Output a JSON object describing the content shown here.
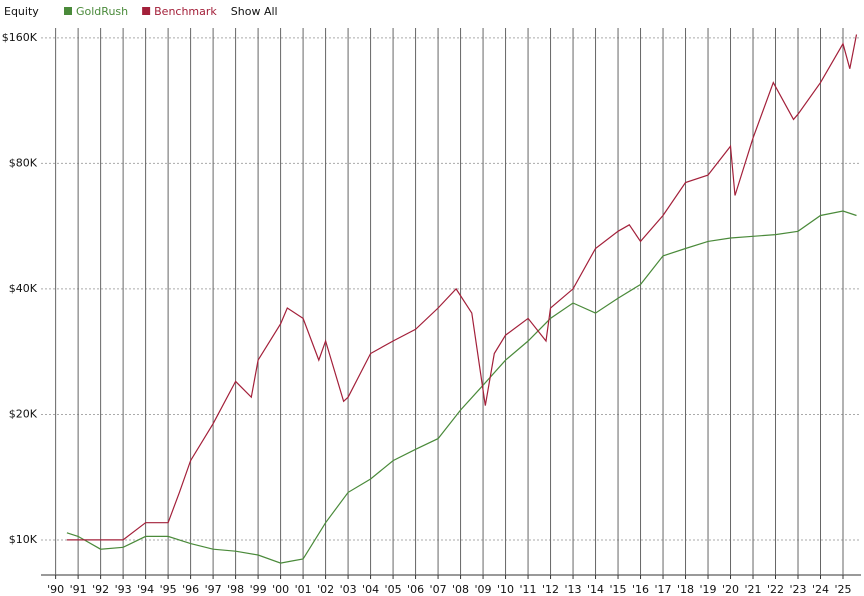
{
  "chart_data": {
    "type": "line",
    "title": "Equity",
    "legend_action": "Show All",
    "log_scale": true,
    "grid": true,
    "xlim": [
      1989.35,
      2025.8
    ],
    "xticks": [
      {
        "value": 1990,
        "label": "'90"
      },
      {
        "value": 1991,
        "label": "'91"
      },
      {
        "value": 1992,
        "label": "'92"
      },
      {
        "value": 1993,
        "label": "'93"
      },
      {
        "value": 1994,
        "label": "'94"
      },
      {
        "value": 1995,
        "label": "'95"
      },
      {
        "value": 1996,
        "label": "'96"
      },
      {
        "value": 1997,
        "label": "'97"
      },
      {
        "value": 1998,
        "label": "'98"
      },
      {
        "value": 1999,
        "label": "'99"
      },
      {
        "value": 2000,
        "label": "'00"
      },
      {
        "value": 2001,
        "label": "'01"
      },
      {
        "value": 2002,
        "label": "'02"
      },
      {
        "value": 2003,
        "label": "'03"
      },
      {
        "value": 2004,
        "label": "'04"
      },
      {
        "value": 2005,
        "label": "'05"
      },
      {
        "value": 2006,
        "label": "'06"
      },
      {
        "value": 2007,
        "label": "'07"
      },
      {
        "value": 2008,
        "label": "'08"
      },
      {
        "value": 2009,
        "label": "'09"
      },
      {
        "value": 2010,
        "label": "'10"
      },
      {
        "value": 2011,
        "label": "'11"
      },
      {
        "value": 2012,
        "label": "'12"
      },
      {
        "value": 2013,
        "label": "'13"
      },
      {
        "value": 2014,
        "label": "'14"
      },
      {
        "value": 2015,
        "label": "'15"
      },
      {
        "value": 2016,
        "label": "'16"
      },
      {
        "value": 2017,
        "label": "'17"
      },
      {
        "value": 2018,
        "label": "'18"
      },
      {
        "value": 2019,
        "label": "'19"
      },
      {
        "value": 2020,
        "label": "'20"
      },
      {
        "value": 2021,
        "label": "'21"
      },
      {
        "value": 2022,
        "label": "'22"
      },
      {
        "value": 2023,
        "label": "'23"
      },
      {
        "value": 2024,
        "label": "'24"
      },
      {
        "value": 2025,
        "label": "'25"
      }
    ],
    "ylim": [
      8240,
      169000
    ],
    "yticks": [
      {
        "value": 10000,
        "label": "$10K"
      },
      {
        "value": 20000,
        "label": "$20K"
      },
      {
        "value": 40000,
        "label": "$40K"
      },
      {
        "value": 80000,
        "label": "$80K"
      },
      {
        "value": 160000,
        "label": "$160K"
      }
    ],
    "series": [
      {
        "name": "GoldRush",
        "color": "#4a8a3a",
        "x": [
          1990.5,
          1991,
          1992,
          1993,
          1994,
          1995,
          1996,
          1997,
          1998,
          1999,
          2000,
          2000.5,
          2001,
          2002,
          2003,
          2004,
          2005,
          2006,
          2007,
          2008,
          2009,
          2010,
          2011,
          2012,
          2013,
          2014,
          2015,
          2016,
          2017,
          2018,
          2019,
          2020,
          2021,
          2022,
          2023,
          2024,
          2025,
          2025.6
        ],
        "values": [
          10400,
          10200,
          9500,
          9600,
          10200,
          10200,
          9800,
          9500,
          9400,
          9200,
          8800,
          8900,
          9000,
          11000,
          13000,
          14000,
          15500,
          16500,
          17500,
          20500,
          23500,
          27000,
          30000,
          34000,
          37000,
          35000,
          38000,
          41000,
          48000,
          50000,
          52000,
          53000,
          53500,
          54000,
          55000,
          60000,
          61500,
          60000
        ]
      },
      {
        "name": "Benchmark",
        "color": "#a3203a",
        "x": [
          1990.5,
          1993,
          1994,
          1995,
          1995.5,
          1996,
          1997,
          1998,
          1998.7,
          1999,
          2000,
          2000.3,
          2001,
          2001.7,
          2002,
          2002.8,
          2003,
          2004,
          2005,
          2006,
          2007,
          2007.8,
          2008.5,
          2009.1,
          2009.5,
          2010,
          2011,
          2011.8,
          2012,
          2013,
          2014,
          2015,
          2015.5,
          2016,
          2017,
          2018,
          2019,
          2020,
          2020.2,
          2021,
          2021.9,
          2022.8,
          2023,
          2024,
          2025,
          2025.3,
          2025.6
        ],
        "values": [
          10000,
          10000,
          11000,
          11000,
          13000,
          15500,
          19000,
          24000,
          22000,
          27000,
          33000,
          36000,
          34000,
          27000,
          30000,
          21500,
          22000,
          28000,
          30000,
          32000,
          36000,
          40000,
          35000,
          21000,
          28000,
          31000,
          34000,
          30000,
          36000,
          40000,
          50000,
          55000,
          57000,
          52000,
          60000,
          72000,
          75000,
          88000,
          67000,
          92000,
          125000,
          102000,
          105000,
          125000,
          155000,
          135000,
          163000
        ]
      }
    ]
  }
}
